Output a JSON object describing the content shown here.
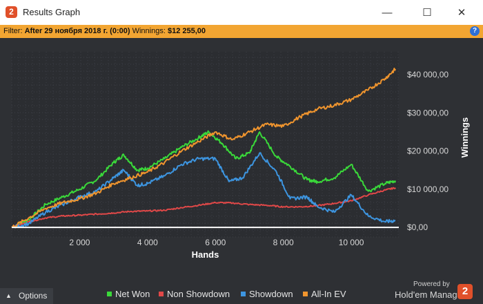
{
  "window": {
    "title": "Results Graph",
    "minimize_icon": "minimize-icon",
    "maximize_icon": "maximize-icon",
    "close_icon": "close-icon"
  },
  "filter": {
    "label": "Filter:",
    "date_text": "After 29 ноября 2018 г. (0:00)",
    "winnings_label": "Winnings:",
    "winnings_value": "$12 255,00"
  },
  "bottom": {
    "options_label": "Options",
    "powered_by": "Powered by",
    "brand_name": "Hold'em Manager",
    "brand_logo_text": "2",
    "legend": [
      {
        "label": "Net Won",
        "color": "#3ad93a"
      },
      {
        "label": "Non Showdown",
        "color": "#e04848"
      },
      {
        "label": "Showdown",
        "color": "#3d95e0"
      },
      {
        "label": "All-In EV",
        "color": "#f0952e"
      }
    ]
  },
  "chart_data": {
    "type": "line",
    "xlabel": "Hands",
    "ylabel": "Winnings",
    "xlim": [
      0,
      11400
    ],
    "ylim": [
      -2500,
      46000
    ],
    "x_ticks": [
      2000,
      4000,
      6000,
      8000,
      10000
    ],
    "x_tick_labels": [
      "2 000",
      "4 000",
      "6 000",
      "8 000",
      "10 000"
    ],
    "y_ticks": [
      0,
      10000,
      20000,
      30000,
      40000
    ],
    "y_tick_labels": [
      "$0,00",
      "$10 000,00",
      "$20 000,00",
      "$30 000,00",
      "$40 000,00"
    ],
    "grid": true,
    "legend_position": "bottom",
    "series": [
      {
        "name": "Net Won",
        "color": "#3ad93a",
        "x": [
          0,
          500,
          1000,
          1500,
          2000,
          2500,
          3000,
          3300,
          3700,
          4000,
          4500,
          5000,
          5500,
          5800,
          6200,
          6600,
          7000,
          7300,
          7800,
          8200,
          8700,
          9000,
          9500,
          10000,
          10500,
          11000,
          11300
        ],
        "y": [
          0,
          2000,
          6000,
          8000,
          10000,
          12500,
          17000,
          19000,
          15000,
          15500,
          18000,
          21000,
          23500,
          25000,
          22000,
          18000,
          19500,
          25000,
          18500,
          16000,
          12500,
          12000,
          13000,
          16500,
          9500,
          11500,
          12255
        ]
      },
      {
        "name": "Non Showdown",
        "color": "#e04848",
        "x": [
          0,
          500,
          1000,
          1500,
          2000,
          2500,
          3000,
          3500,
          4000,
          4500,
          5000,
          5500,
          6000,
          6500,
          7000,
          7500,
          8000,
          8500,
          9000,
          9500,
          10000,
          10500,
          11000,
          11300
        ],
        "y": [
          0,
          1500,
          2500,
          3000,
          3200,
          3500,
          3800,
          4200,
          4300,
          4500,
          5200,
          5800,
          6500,
          6400,
          6000,
          5800,
          5400,
          5400,
          5700,
          6300,
          7000,
          8500,
          9800,
          10400
        ]
      },
      {
        "name": "Showdown",
        "color": "#3d95e0",
        "x": [
          0,
          500,
          1000,
          1500,
          2000,
          2500,
          3000,
          3300,
          3700,
          4000,
          4500,
          5000,
          5500,
          6000,
          6400,
          6800,
          7300,
          7800,
          8200,
          8700,
          9000,
          9500,
          10000,
          10500,
          11000,
          11300
        ],
        "y": [
          0,
          1000,
          4000,
          6000,
          8000,
          9500,
          13000,
          15000,
          11000,
          11500,
          13500,
          16500,
          18000,
          18000,
          12000,
          13000,
          19500,
          14500,
          7500,
          8000,
          5500,
          4000,
          8500,
          3000,
          1500,
          1800
        ]
      },
      {
        "name": "All-In EV",
        "color": "#f0952e",
        "x": [
          0,
          500,
          1000,
          1500,
          2000,
          2500,
          3000,
          3500,
          4000,
          4500,
          5000,
          5500,
          6000,
          6500,
          7000,
          7500,
          8000,
          8500,
          9000,
          9500,
          10000,
          10500,
          11000,
          11300
        ],
        "y": [
          0,
          2500,
          5000,
          6500,
          7500,
          9000,
          11500,
          13000,
          14500,
          17000,
          20000,
          22500,
          25000,
          23000,
          25000,
          27000,
          26500,
          29000,
          31000,
          32000,
          33500,
          36000,
          39000,
          41500
        ]
      }
    ]
  }
}
